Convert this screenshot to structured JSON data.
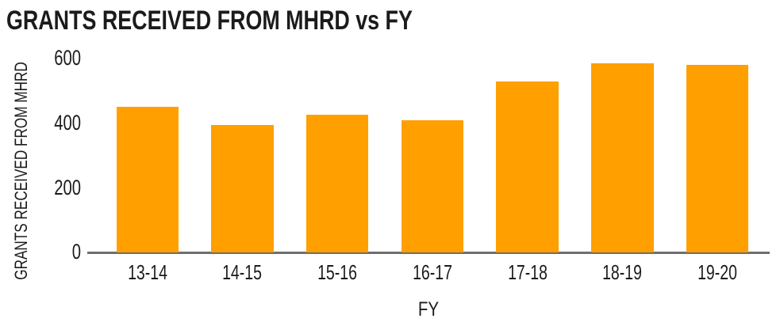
{
  "chart_data": {
    "type": "bar",
    "title": "GRANTS RECEIVED FROM MHRD vs FY",
    "xlabel": "FY",
    "ylabel": "GRANTS RECEIVED FROM MHRD",
    "categories": [
      "13-14",
      "14-15",
      "15-16",
      "16-17",
      "17-18",
      "18-19",
      "19-20"
    ],
    "values": [
      450,
      395,
      425,
      410,
      530,
      585,
      580
    ],
    "yticks": [
      0,
      200,
      400,
      600
    ],
    "ylim": [
      0,
      600
    ],
    "grid": false,
    "legend": "none",
    "bar_color": "#FF9F00",
    "axis_color": "#6e6e6e",
    "text_color": "#1b1b1b",
    "background": "#ffffff"
  }
}
